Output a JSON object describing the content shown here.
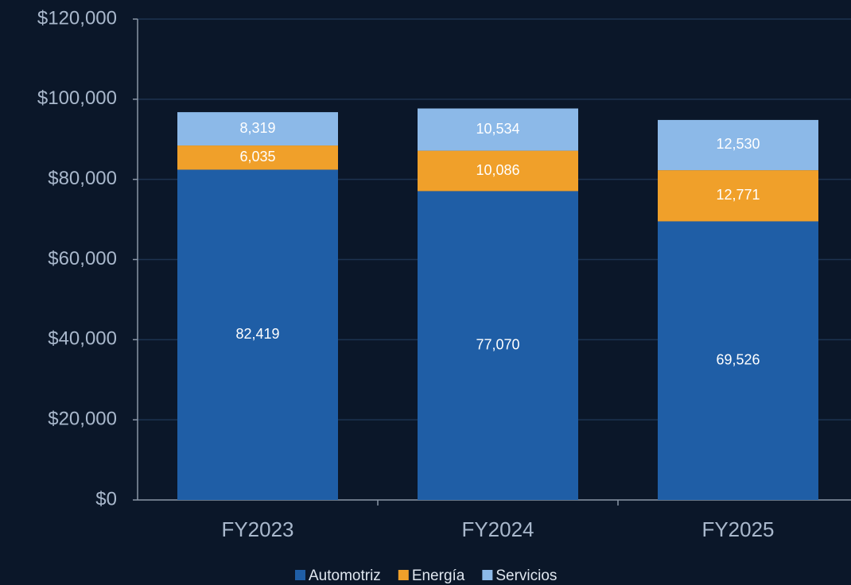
{
  "chart_data": {
    "type": "stacked_bar",
    "categories": [
      "FY2023",
      "FY2024",
      "FY2025"
    ],
    "series": [
      {
        "name": "Automotriz",
        "color": "#1f5ea6",
        "values": [
          82419,
          77070,
          69526
        ],
        "value_labels": [
          "82,419",
          "77,070",
          "69,526"
        ]
      },
      {
        "name": "Energía",
        "color": "#f0a02a",
        "values": [
          6035,
          10086,
          12771
        ],
        "value_labels": [
          "6,035",
          "10,086",
          "12,771"
        ]
      },
      {
        "name": "Servicios",
        "color": "#8cb9e8",
        "values": [
          8319,
          10534,
          12530
        ],
        "value_labels": [
          "8,319",
          "10,534",
          "12,530"
        ]
      }
    ],
    "ylim": [
      0,
      120000
    ],
    "yticks": [
      {
        "value": 0,
        "label": "$0"
      },
      {
        "value": 20000,
        "label": "$20,000"
      },
      {
        "value": 40000,
        "label": "$40,000"
      },
      {
        "value": 60000,
        "label": "$60,000"
      },
      {
        "value": 80000,
        "label": "$80,000"
      },
      {
        "value": 100000,
        "label": "$100,000"
      },
      {
        "value": 120000,
        "label": "$120,000"
      }
    ],
    "grid": true,
    "legend": "bottom"
  }
}
